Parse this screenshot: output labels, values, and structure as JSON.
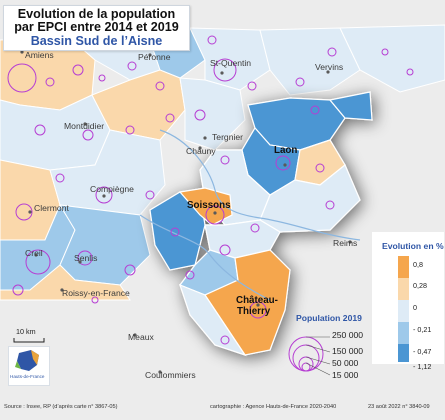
{
  "title": {
    "line1": "Evolution de la population",
    "line2": "par EPCI entre 2014 et 2019",
    "line3": "Bassin Sud de l’Aisne"
  },
  "places": {
    "amiens": "Amiens",
    "peronne": "Péronne",
    "st_quentin": "St-Quentin",
    "vervins": "Vervins",
    "montdidier": "Montdidier",
    "tergnier": "Tergnier",
    "chauny": "Chauny",
    "laon": "Laon",
    "compiegne": "Compiègne",
    "clermont": "Clermont",
    "soissons": "Soissons",
    "reims": "Reims",
    "creil": "Creil",
    "senlis": "Senlis",
    "chateau_thierry_1": "Château-",
    "chateau_thierry_2": "Thierry",
    "roissy": "Roissy-en-France",
    "meaux": "Meaux",
    "coulommiers": "Coulommiers"
  },
  "legend_evolution": {
    "title": "Evolution en %",
    "breaks": [
      "0,8",
      "0,28",
      "0",
      "- 0,21",
      "- 0,47",
      "- 1,12"
    ],
    "class_colors": [
      "#f5a64d",
      "#fad8ab",
      "#deebf6",
      "#9ec9ea",
      "#4b96d3"
    ]
  },
  "legend_population": {
    "title": "Population 2019",
    "values": [
      "250 000",
      "150 000",
      "50 000",
      "15 000"
    ],
    "circle_color": "#b63ed3"
  },
  "scale_bar": "10 km",
  "logo": {
    "text": "Hauts-de-France",
    "icon": "region-map-icon"
  },
  "footer": {
    "source": "Source : Insee, RP (d’après carte n° 3867-05)",
    "cartography": "cartographie : Agence Hauts-de-France 2020-2040",
    "date": "23 août 2022 n° 3840-09"
  },
  "colors": {
    "orange_high": "#f5a64d",
    "orange_light": "#fad8ab",
    "blue_pale": "#deebf6",
    "blue_mid": "#9ec9ea",
    "blue_dark": "#4b96d3",
    "outside": "#ececec",
    "boundary": "#ffffff",
    "circles": "#b63ed3"
  }
}
